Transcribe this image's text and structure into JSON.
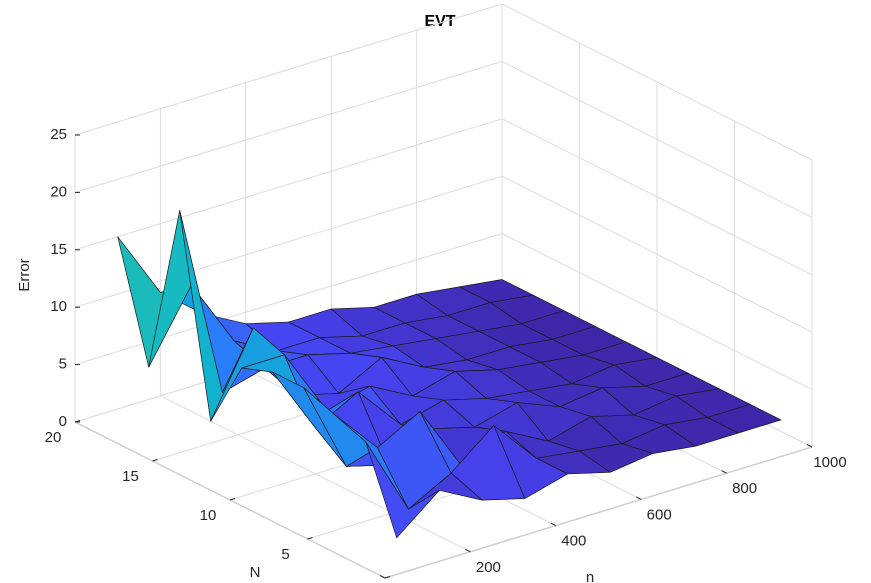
{
  "chart_data": {
    "type": "surface",
    "title": "EVT",
    "xlabel": "n",
    "ylabel": "N",
    "zlabel": "Error",
    "x": [
      100,
      200,
      300,
      400,
      500,
      600,
      700,
      800,
      900,
      1000
    ],
    "y": [
      2,
      4,
      6,
      8,
      10,
      12,
      14,
      16,
      18,
      20
    ],
    "z": [
      [
        1,
        4,
        2,
        1,
        2,
        1,
        1.5,
        1,
        1,
        1
      ],
      [
        8,
        1,
        3,
        6,
        2,
        1.5,
        1,
        1.5,
        1,
        1
      ],
      [
        9,
        5,
        7,
        1,
        3,
        1,
        2,
        1,
        1.5,
        1
      ],
      [
        10,
        2,
        1,
        3,
        2,
        3,
        1.5,
        2,
        1,
        1
      ],
      [
        10,
        4,
        6,
        2,
        3,
        2,
        1.5,
        1,
        1.5,
        1
      ],
      [
        9,
        9,
        3,
        4,
        2,
        3,
        2,
        1.5,
        1,
        1
      ],
      [
        3,
        10,
        3,
        2,
        4,
        2,
        1.5,
        1.5,
        1,
        1
      ],
      [
        20,
        3,
        4,
        4,
        3,
        2.5,
        2,
        1.5,
        1,
        1
      ],
      [
        5,
        11,
        5,
        3,
        3,
        2,
        2,
        1.5,
        1.5,
        1
      ],
      [
        15,
        9,
        6,
        4,
        3,
        3,
        2,
        2,
        1.5,
        1
      ]
    ],
    "xlim": [
      0,
      1000
    ],
    "ylim": [
      0,
      20
    ],
    "zlim": [
      0,
      25
    ],
    "xticks": [
      0,
      200,
      400,
      600,
      800,
      1000
    ],
    "yticks": [
      0,
      5,
      10,
      15,
      20
    ],
    "zticks": [
      0,
      5,
      10,
      15,
      20,
      25
    ],
    "grid": true,
    "colormap": [
      "#3e26a8",
      "#4743f0",
      "#2f73fe",
      "#1a99e6",
      "#10b8c8",
      "#3fc596",
      "#9cc63d",
      "#e4b92c",
      "#fbe122",
      "#f9fb15"
    ]
  }
}
